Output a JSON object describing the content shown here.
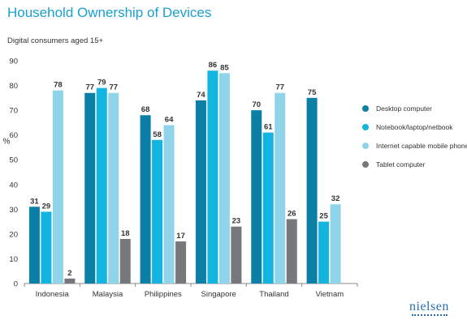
{
  "title": "Household Ownership of Devices",
  "subtitle": "Digital consumers aged 15+",
  "brand": "nielsen",
  "chart_data": {
    "type": "bar",
    "title": "Household Ownership of Devices",
    "subtitle": "Digital consumers aged 15+",
    "xlabel": "",
    "ylabel": "%",
    "ylim": [
      0,
      90
    ],
    "yticks": [
      0,
      10,
      20,
      30,
      40,
      50,
      60,
      70,
      80,
      90
    ],
    "grid": false,
    "legend_position": "right",
    "categories": [
      "Indonesia",
      "Malaysia",
      "Philippines",
      "Singapore",
      "Thailand",
      "Vietnam"
    ],
    "series": [
      {
        "name": "Desktop computer",
        "color": "#0b7fa6",
        "values": [
          31,
          77,
          68,
          74,
          70,
          75
        ]
      },
      {
        "name": "Notebook/laptop/netbook",
        "color": "#14b4e0",
        "values": [
          29,
          79,
          58,
          86,
          61,
          25
        ]
      },
      {
        "name": "Internet capable mobile phone",
        "color": "#8fd4ea",
        "values": [
          78,
          77,
          64,
          85,
          77,
          32
        ]
      },
      {
        "name": "Tablet computer",
        "color": "#77787c",
        "values": [
          2,
          18,
          17,
          23,
          26,
          null
        ]
      }
    ]
  }
}
